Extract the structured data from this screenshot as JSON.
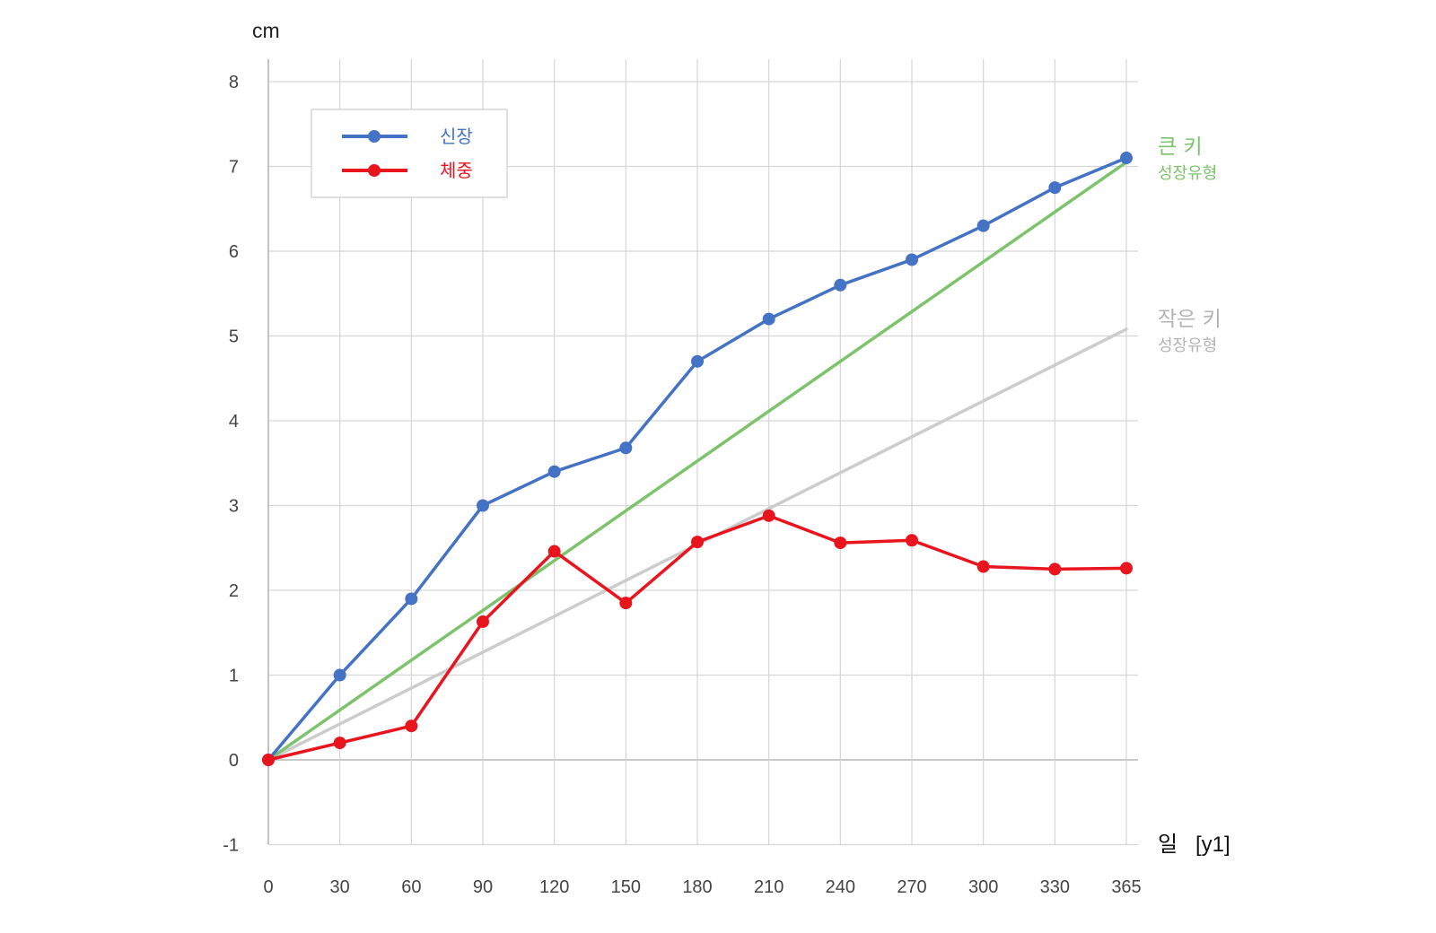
{
  "chart_data": {
    "type": "line",
    "ylabel": "cm",
    "xlabel": "일",
    "xlabel_suffix": "[y1]",
    "x": [
      0,
      30,
      60,
      90,
      120,
      150,
      180,
      210,
      240,
      270,
      300,
      330,
      365
    ],
    "xlim": [
      0,
      365
    ],
    "ylim": [
      -1,
      8
    ],
    "y_ticks": [
      -1,
      0,
      1,
      2,
      3,
      4,
      5,
      6,
      7,
      8
    ],
    "grid": true,
    "legend_position": "top-left",
    "series": [
      {
        "name": "신장",
        "color": "#4472c4",
        "values": [
          0,
          1.0,
          1.9,
          3.0,
          3.4,
          3.68,
          4.7,
          5.2,
          5.6,
          5.9,
          6.3,
          6.75,
          7.1
        ]
      },
      {
        "name": "체중",
        "color": "#e8141e",
        "values": [
          0,
          0.2,
          0.4,
          1.63,
          2.46,
          1.85,
          2.57,
          2.88,
          2.56,
          2.59,
          2.28,
          2.25,
          2.26
        ]
      }
    ],
    "reference_lines": [
      {
        "title": "큰 키",
        "subtitle": "성장유형",
        "color": "#7dc36b",
        "from": [
          0,
          0
        ],
        "to": [
          365,
          7.05
        ]
      },
      {
        "title": "작은 키",
        "subtitle": "성장유형",
        "color": "#cccccc",
        "text_color": "#b3b3b3",
        "from": [
          0,
          0
        ],
        "to": [
          365,
          5.08
        ]
      }
    ]
  }
}
